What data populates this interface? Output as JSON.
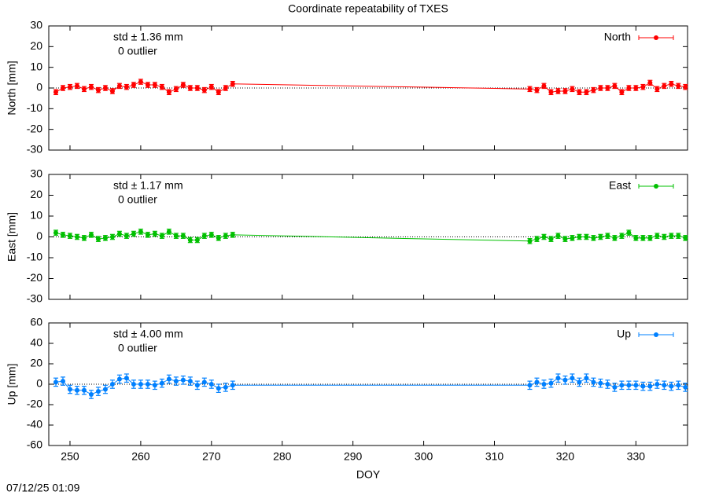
{
  "title": "Coordinate repeatability of TXES",
  "timestamp": "07/12/25 01:09",
  "chart_data": [
    {
      "type": "errorbar",
      "ylabel": "North [mm]",
      "annotations": [
        "std ± 1.36 mm",
        "0 outlier"
      ],
      "x": [
        248,
        249,
        250,
        251,
        252,
        253,
        254,
        255,
        256,
        257,
        258,
        259,
        260,
        261,
        262,
        263,
        264,
        265,
        266,
        267,
        268,
        269,
        270,
        271,
        272,
        273,
        315,
        316,
        317,
        318,
        319,
        320,
        321,
        322,
        323,
        324,
        325,
        326,
        327,
        328,
        329,
        330,
        331,
        332,
        333,
        334,
        335,
        336,
        337
      ],
      "series": [
        {
          "name": "North",
          "color": "#ff0000",
          "error": 1.2,
          "values": [
            -2,
            0,
            0.5,
            1,
            -0.5,
            0.5,
            -1,
            0,
            -1.5,
            1,
            0.5,
            1.5,
            3,
            1.5,
            1.5,
            0.5,
            -2,
            -0.5,
            1.5,
            0,
            0,
            -1,
            0.5,
            -2,
            0,
            2,
            -0.5,
            -1,
            1,
            -2,
            -1.5,
            -1.5,
            -0.5,
            -2,
            -2,
            -1,
            0,
            0,
            1,
            -2,
            0,
            0,
            0.5,
            2.5,
            -0.5,
            1,
            2,
            1,
            0.5
          ]
        }
      ],
      "xlim": [
        247,
        337.3
      ],
      "ylim": [
        -30,
        30
      ],
      "yticks": [
        -30,
        -20,
        -10,
        0,
        10,
        20,
        30
      ],
      "xticks": [
        250,
        260,
        270,
        280,
        290,
        300,
        310,
        320,
        330
      ],
      "legend": "upper right"
    },
    {
      "type": "errorbar",
      "ylabel": "East [mm]",
      "annotations": [
        "std ± 1.17 mm",
        "0 outlier"
      ],
      "x": [
        248,
        249,
        250,
        251,
        252,
        253,
        254,
        255,
        256,
        257,
        258,
        259,
        260,
        261,
        262,
        263,
        264,
        265,
        266,
        267,
        268,
        269,
        270,
        271,
        272,
        273,
        315,
        316,
        317,
        318,
        319,
        320,
        321,
        322,
        323,
        324,
        325,
        326,
        327,
        328,
        329,
        330,
        331,
        332,
        333,
        334,
        335,
        336,
        337
      ],
      "series": [
        {
          "name": "East",
          "color": "#00c000",
          "error": 1.2,
          "values": [
            2,
            1,
            0.5,
            0,
            -0.5,
            1,
            -1,
            -0.5,
            0,
            1.5,
            0.5,
            1.5,
            2.5,
            1,
            1.5,
            0.5,
            2.5,
            0.5,
            0.5,
            -1.5,
            -1.5,
            0.5,
            1,
            -0.5,
            0.5,
            1,
            -2,
            -1,
            0,
            -1,
            0.5,
            -1,
            -0.5,
            0,
            0,
            -0.5,
            0,
            0.5,
            -0.5,
            0.5,
            2,
            -0.5,
            -0.5,
            -0.5,
            0.5,
            0,
            0.5,
            0.5,
            -0.5
          ]
        }
      ],
      "xlim": [
        247,
        337.3
      ],
      "ylim": [
        -30,
        30
      ],
      "yticks": [
        -30,
        -20,
        -10,
        0,
        10,
        20,
        30
      ],
      "xticks": [
        250,
        260,
        270,
        280,
        290,
        300,
        310,
        320,
        330
      ],
      "legend": "upper right"
    },
    {
      "type": "errorbar",
      "ylabel": "Up [mm]",
      "xlabel": "DOY",
      "annotations": [
        "std ± 4.00 mm",
        "0 outlier"
      ],
      "x": [
        248,
        249,
        250,
        251,
        252,
        253,
        254,
        255,
        256,
        257,
        258,
        259,
        260,
        261,
        262,
        263,
        264,
        265,
        266,
        267,
        268,
        269,
        270,
        271,
        272,
        273,
        315,
        316,
        317,
        318,
        319,
        320,
        321,
        322,
        323,
        324,
        325,
        326,
        327,
        328,
        329,
        330,
        331,
        332,
        333,
        334,
        335,
        336,
        337
      ],
      "series": [
        {
          "name": "Up",
          "color": "#0080ff",
          "error": 4,
          "values": [
            2,
            3,
            -5,
            -6,
            -6,
            -10,
            -7,
            -5,
            0,
            5,
            6,
            0,
            0,
            0,
            -1,
            1,
            5,
            3,
            4,
            3,
            -1,
            2,
            0,
            -4,
            -3,
            -1,
            -1,
            2,
            0,
            1,
            6,
            4,
            6,
            2,
            6,
            2,
            1,
            0,
            -3,
            -1,
            -1,
            -1,
            -2,
            -2,
            0,
            -1,
            -2,
            -1,
            -3
          ]
        }
      ],
      "xlim": [
        247,
        337.3
      ],
      "ylim": [
        -60,
        60
      ],
      "yticks": [
        -60,
        -40,
        -20,
        0,
        20,
        40,
        60
      ],
      "xticks": [
        250,
        260,
        270,
        280,
        290,
        300,
        310,
        320,
        330
      ],
      "legend": "upper right"
    }
  ]
}
